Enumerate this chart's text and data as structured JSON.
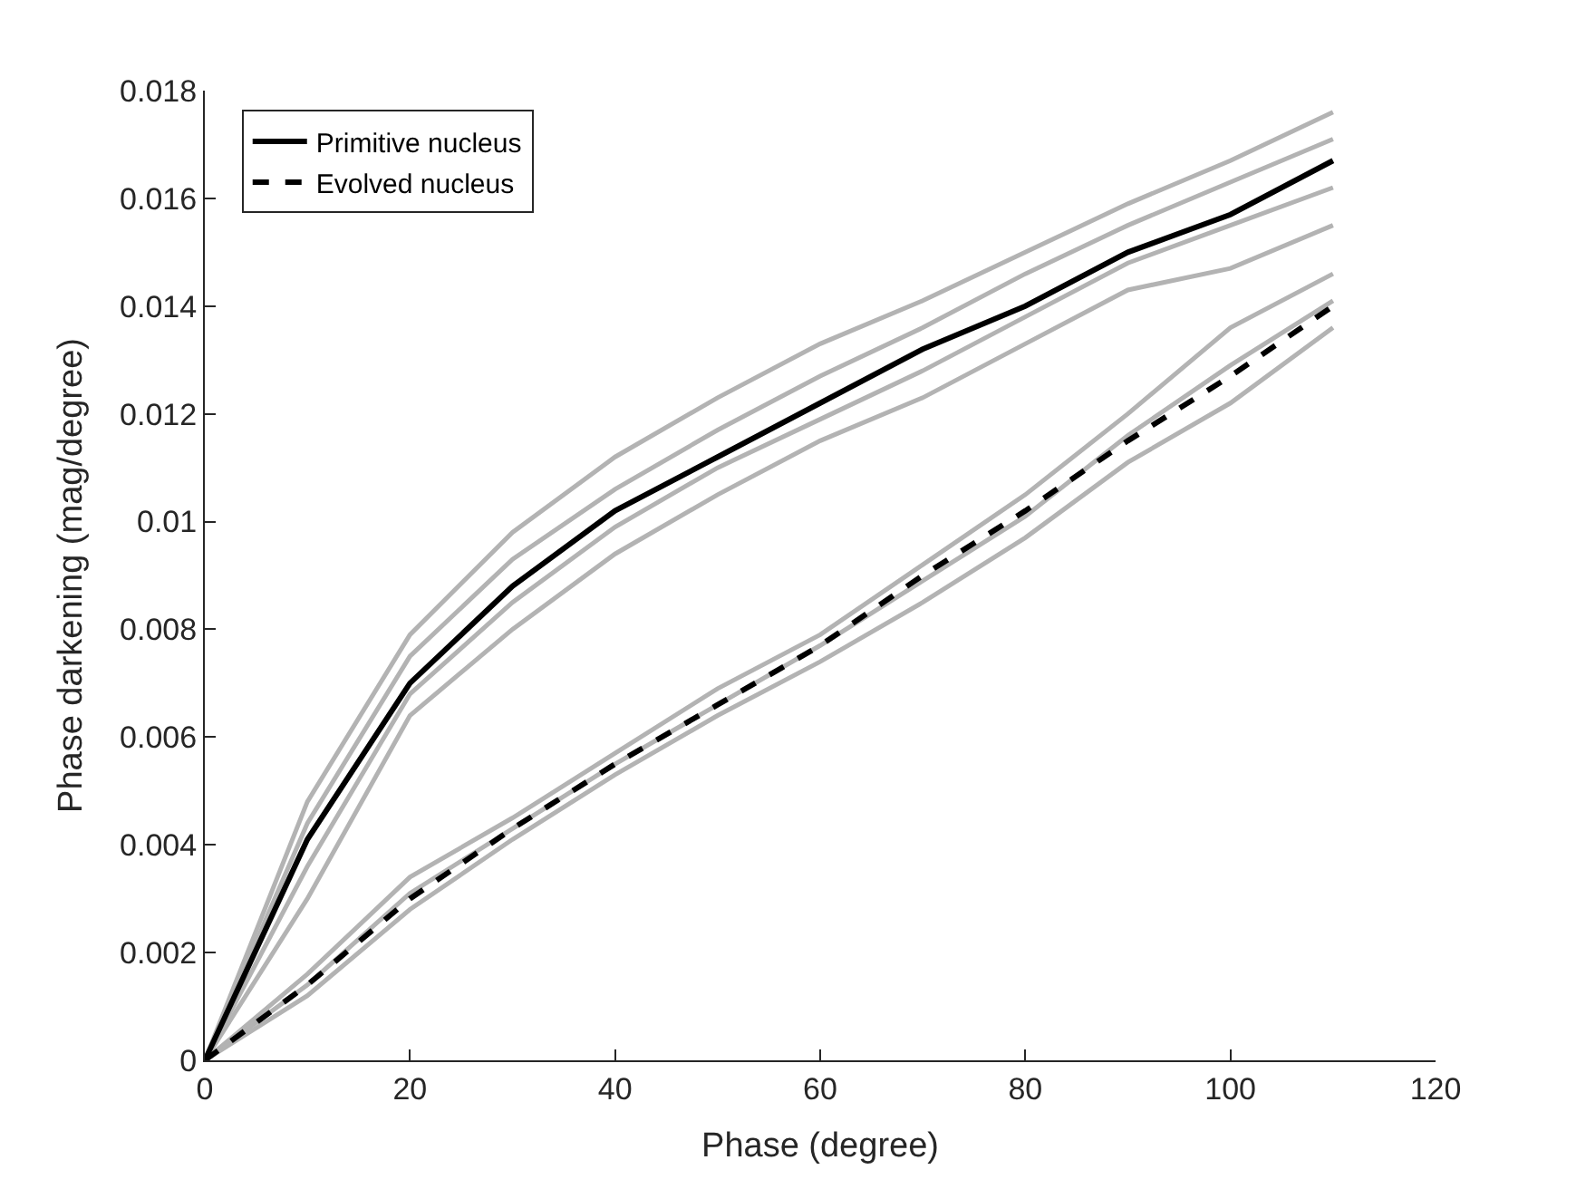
{
  "chart_data": {
    "type": "line",
    "xlabel": "Phase (degree)",
    "ylabel": "Phase darkening (mag/degree)",
    "x": [
      0,
      10,
      20,
      30,
      40,
      50,
      60,
      70,
      80,
      90,
      100,
      110
    ],
    "xlim": [
      0,
      120
    ],
    "xticks": [
      0,
      20,
      40,
      60,
      80,
      100,
      120
    ],
    "ylim": [
      0,
      0.018
    ],
    "yticks": [
      0,
      0.002,
      0.004,
      0.006,
      0.008,
      {
        "value": 0.01,
        "label": "0.01"
      },
      0.012,
      0.014,
      0.016,
      0.018
    ],
    "legend": "top left",
    "marker": "none",
    "series": [
      {
        "color": "#b3b3b3",
        "values": [
          0,
          0.0048,
          0.0079,
          0.0098,
          0.0112,
          0.0123,
          0.0133,
          0.0141,
          0.015,
          0.0159,
          0.0167,
          0.0176
        ]
      },
      {
        "color": "#b3b3b3",
        "values": [
          0,
          0.0044,
          0.0075,
          0.0093,
          0.0106,
          0.0117,
          0.0127,
          0.0136,
          0.0146,
          0.0155,
          0.0163,
          0.0171
        ]
      },
      {
        "color": "#b3b3b3",
        "values": [
          0,
          0.0036,
          0.0068,
          0.0085,
          0.0099,
          0.011,
          0.0119,
          0.0128,
          0.0138,
          0.0148,
          0.0155,
          0.0162
        ]
      },
      {
        "color": "#b3b3b3",
        "values": [
          0,
          0.003,
          0.0064,
          0.008,
          0.0094,
          0.0105,
          0.0115,
          0.0123,
          0.0133,
          0.0143,
          0.0147,
          0.0155
        ]
      },
      {
        "color": "#b3b3b3",
        "values": [
          0,
          0.0016,
          0.0034,
          0.0045,
          0.0057,
          0.0069,
          0.0079,
          0.0092,
          0.0105,
          0.012,
          0.0136,
          0.0146
        ]
      },
      {
        "color": "#b3b3b3",
        "values": [
          0,
          0.0014,
          0.0031,
          0.0043,
          0.0055,
          0.0066,
          0.0077,
          0.0089,
          0.0101,
          0.0116,
          0.0129,
          0.0141
        ]
      },
      {
        "color": "#b3b3b3",
        "values": [
          0,
          0.0012,
          0.0028,
          0.0041,
          0.0053,
          0.0064,
          0.0074,
          0.0085,
          0.0097,
          0.0111,
          0.0122,
          0.0136
        ]
      },
      {
        "name": "Primitive nucleus",
        "color": "#000000",
        "line_style": "solid",
        "values": [
          0,
          0.0041,
          0.007,
          0.0088,
          0.0102,
          0.0112,
          0.0122,
          0.0132,
          0.014,
          0.015,
          0.0157,
          0.0167
        ]
      },
      {
        "name": "Evolved nucleus",
        "color": "#000000",
        "line_style": "dashed",
        "values": [
          0,
          0.0014,
          0.003,
          0.0043,
          0.0055,
          0.0066,
          0.0077,
          0.009,
          0.0102,
          0.0115,
          0.0127,
          0.014
        ]
      }
    ]
  }
}
